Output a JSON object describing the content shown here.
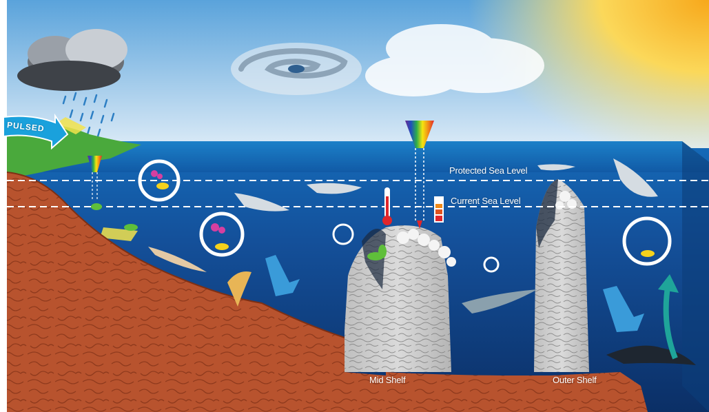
{
  "diagram": {
    "badge_text": "PULSED",
    "sea_levels": {
      "protected_label": "Protected Sea Level",
      "current_label": "Current Sea Level"
    },
    "zones": {
      "mid_shelf_label": "Mid Shelf",
      "outer_shelf_label": "Outer Shelf"
    }
  },
  "colors": {
    "sky_top": "#5aa3db",
    "sky_bottom": "#dcebf7",
    "sun": "#f7a81b",
    "sea_surface": "#1569b7",
    "sea_deep": "#0b2f66",
    "seabed": "#b8532e",
    "reef_rock": "#cfd0cf",
    "shore_green": "#4aa93c",
    "arrow_blue": "#3a9bd9",
    "arrow_teal": "#1fa59a",
    "badge_blue": "#1aa1dc"
  },
  "icons": [
    "rain-cloud-icon",
    "cyclone-icon",
    "sun-icon",
    "shark-icon",
    "sawfish-icon",
    "stingray-icon",
    "hammerhead-icon",
    "thresher-shark-icon",
    "thermometer-icon",
    "coral-icon",
    "fish-icon",
    "seedling-icon",
    "light-spectrum-icon",
    "acidity-gauge-icon",
    "cycle-icon",
    "migration-arrow-icon",
    "runoff-arrow-icon"
  ]
}
